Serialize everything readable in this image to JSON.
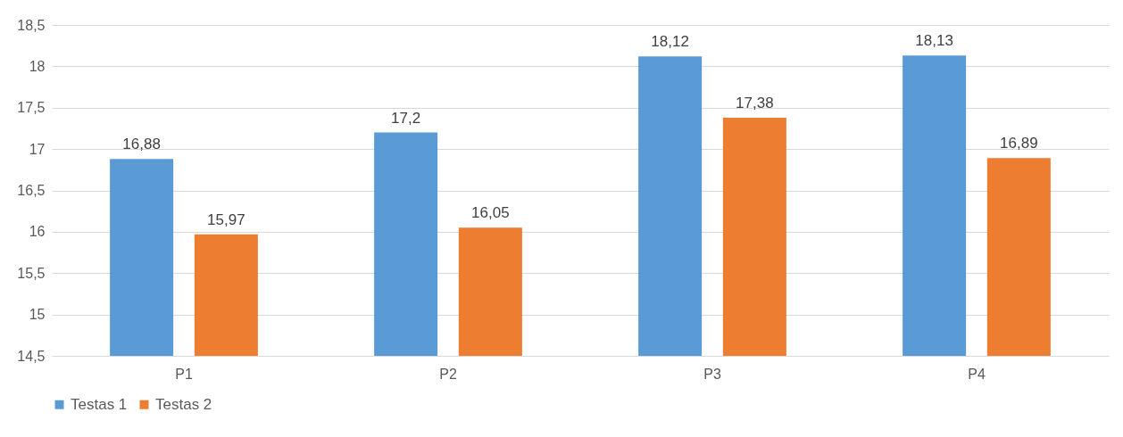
{
  "chart_data": {
    "type": "bar",
    "categories": [
      "P1",
      "P2",
      "P3",
      "P4"
    ],
    "series": [
      {
        "name": "Testas 1",
        "color": "#5b9bd5",
        "values": [
          16.88,
          17.2,
          18.12,
          18.13
        ],
        "value_labels": [
          "16,88",
          "17,2",
          "18,12",
          "18,13"
        ]
      },
      {
        "name": "Testas 2",
        "color": "#ed7d31",
        "values": [
          15.97,
          16.05,
          17.38,
          16.89
        ],
        "value_labels": [
          "15,97",
          "16,05",
          "17,38",
          "16,89"
        ]
      }
    ],
    "ylim": [
      14.5,
      18.5
    ],
    "yticks": [
      {
        "value": 14.5,
        "label": "14,5"
      },
      15,
      {
        "value": 15.5,
        "label": "15,5"
      },
      16,
      {
        "value": 16.5,
        "label": "16,5"
      },
      17,
      {
        "value": 17.5,
        "label": "17,5"
      },
      18,
      {
        "value": 18.5,
        "label": "18,5"
      }
    ],
    "grid": "y",
    "legend": "bottom"
  }
}
